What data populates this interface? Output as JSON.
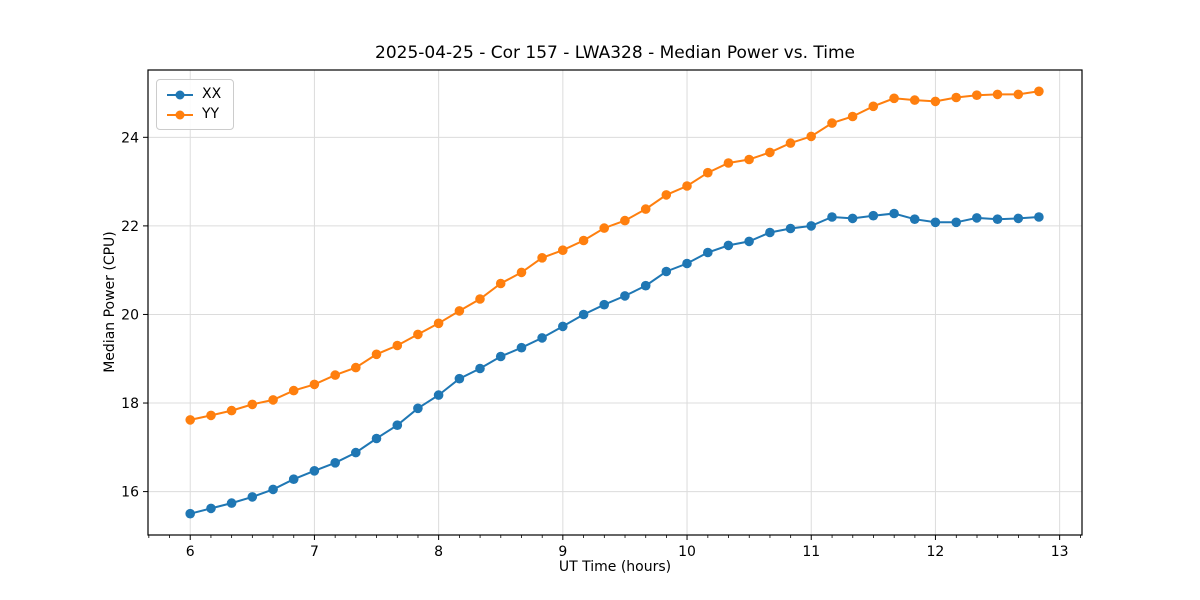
{
  "figure": {
    "title": "2025-04-25 - Cor 157 - LWA328 - Median Power vs. Time",
    "xlabel": "UT Time (hours)",
    "ylabel": "Median Power (CPU)"
  },
  "legend": {
    "position": "upper left",
    "items": [
      {
        "label": "XX",
        "color": "#1f77b4"
      },
      {
        "label": "YY",
        "color": "#ff7f0e"
      }
    ]
  },
  "chart_data": {
    "type": "line",
    "title": "2025-04-25 - Cor 157 - LWA328 - Median Power vs. Time",
    "xlabel": "UT Time (hours)",
    "ylabel": "Median Power (CPU)",
    "xlim": [
      5.66,
      13.18
    ],
    "ylim": [
      15.02,
      25.52
    ],
    "x_ticks": [
      6,
      7,
      8,
      9,
      10,
      11,
      12,
      13
    ],
    "y_ticks": [
      16,
      18,
      20,
      22,
      24
    ],
    "x_minor_step": 0.1667,
    "grid": true,
    "marker": "circle",
    "colors": {
      "grid": "#dcdcdc",
      "axis": "#000000",
      "background": "#ffffff"
    },
    "x": [
      6.0,
      6.167,
      6.333,
      6.5,
      6.667,
      6.833,
      7.0,
      7.167,
      7.333,
      7.5,
      7.667,
      7.833,
      8.0,
      8.167,
      8.333,
      8.5,
      8.667,
      8.833,
      9.0,
      9.167,
      9.333,
      9.5,
      9.667,
      9.833,
      10.0,
      10.167,
      10.333,
      10.5,
      10.667,
      10.833,
      11.0,
      11.167,
      11.333,
      11.5,
      11.667,
      11.833,
      12.0,
      12.167,
      12.333,
      12.5,
      12.667,
      12.833
    ],
    "series": [
      {
        "name": "XX",
        "color": "#1f77b4",
        "values": [
          15.5,
          15.62,
          15.74,
          15.88,
          16.05,
          16.28,
          16.47,
          16.65,
          16.88,
          17.2,
          17.5,
          17.88,
          18.18,
          18.55,
          18.78,
          19.05,
          19.25,
          19.47,
          19.73,
          20.0,
          20.22,
          20.42,
          20.65,
          20.97,
          21.15,
          21.4,
          21.56,
          21.65,
          21.85,
          21.94,
          22.0,
          22.2,
          22.17,
          22.23,
          22.28,
          22.15,
          22.08,
          22.08,
          22.18,
          22.15,
          22.17,
          22.2
        ]
      },
      {
        "name": "YY",
        "color": "#ff7f0e",
        "values": [
          17.62,
          17.72,
          17.83,
          17.97,
          18.07,
          18.28,
          18.42,
          18.63,
          18.8,
          19.1,
          19.3,
          19.55,
          19.8,
          20.08,
          20.35,
          20.7,
          20.95,
          21.28,
          21.45,
          21.67,
          21.95,
          22.12,
          22.38,
          22.7,
          22.9,
          23.2,
          23.42,
          23.5,
          23.66,
          23.87,
          24.02,
          24.32,
          24.47,
          24.7,
          24.88,
          24.84,
          24.81,
          24.9,
          24.95,
          24.97,
          24.97,
          25.04
        ]
      }
    ]
  }
}
